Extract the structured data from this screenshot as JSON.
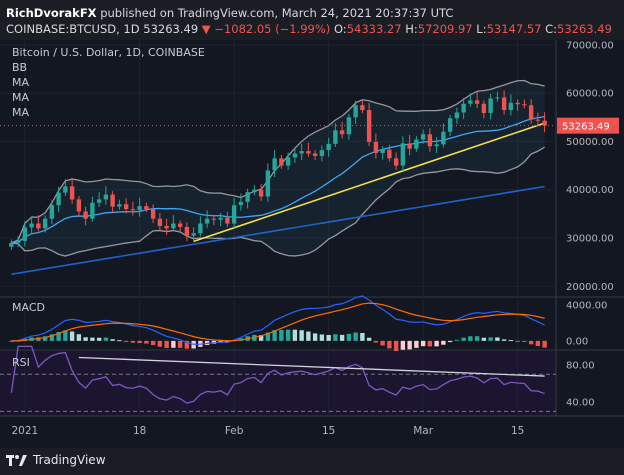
{
  "header": {
    "author": "RichDvorakFX",
    "published": "published on TradingView.com, March 24, 2021 20:37:37 UTC",
    "symbol": "COINBASE:BTCUSD, 1D",
    "last": "53263.49",
    "change": "▼ −1082.05 (−1.99%)",
    "o_label": "O:",
    "o_value": "54333.27",
    "h_label": "H:",
    "h_value": "57209.97",
    "l_label": "L:",
    "l_value": "53147.57",
    "c_label": "C:",
    "c_value": "53263.49"
  },
  "legend": {
    "title": "Bitcoin / U.S. Dollar, 1D, COINBASE",
    "items": [
      "BB",
      "MA",
      "MA",
      "MA"
    ]
  },
  "footer": {
    "brand": "TradingView"
  },
  "colors": {
    "up": "#26a69a",
    "down": "#ef5350",
    "bb_band": "#9598a1",
    "ma_fast": "#42a5f5",
    "ma_slow": "#1e63c9",
    "trendline": "#f5e04a",
    "macd_line": "#2962ff",
    "signal_line": "#ff6d00",
    "rsi_line": "#7e57c2"
  },
  "chart_data": [
    {
      "type": "candlestick",
      "title": "Bitcoin / U.S. Dollar, 1D, COINBASE",
      "x_ticks": [
        "2021",
        "18",
        "Feb",
        "15",
        "Mar",
        "15"
      ],
      "y_ticks": [
        "20000.00",
        "30000.00",
        "40000.00",
        "50000.00",
        "60000.00",
        "70000.00"
      ],
      "ylim": [
        18000,
        71000
      ],
      "last_price_label": "53263.49",
      "closes": [
        29000,
        29400,
        32200,
        33000,
        32000,
        34000,
        36800,
        39400,
        40700,
        38000,
        35500,
        34000,
        37300,
        38000,
        39000,
        36500,
        37000,
        36000,
        35800,
        36600,
        36000,
        34000,
        32500,
        32000,
        33000,
        32300,
        30500,
        31000,
        33000,
        34000,
        33800,
        34200,
        33000,
        36800,
        37500,
        39500,
        40000,
        38600,
        44000,
        46500,
        45000,
        46700,
        47500,
        48000,
        47500,
        47000,
        48200,
        49500,
        52300,
        51500,
        55000,
        57500,
        56500,
        49900,
        47600,
        48300,
        46500,
        45000,
        49600,
        48500,
        50400,
        51500,
        49000,
        49400,
        52000,
        54800,
        56000,
        57800,
        58500,
        57800,
        55900,
        58900,
        59100,
        56500,
        58000,
        57700,
        57500,
        54500,
        54300,
        53263
      ]
    },
    {
      "type": "histogram",
      "title": "MACD",
      "y_ticks": [
        "4000.00",
        "0.00"
      ],
      "macd_range": [
        -800,
        4800
      ]
    },
    {
      "type": "line",
      "title": "RSI",
      "y_ticks": [
        "80.00",
        "40.00"
      ],
      "ylim": [
        25,
        95
      ],
      "bands": [
        70,
        30
      ]
    }
  ]
}
